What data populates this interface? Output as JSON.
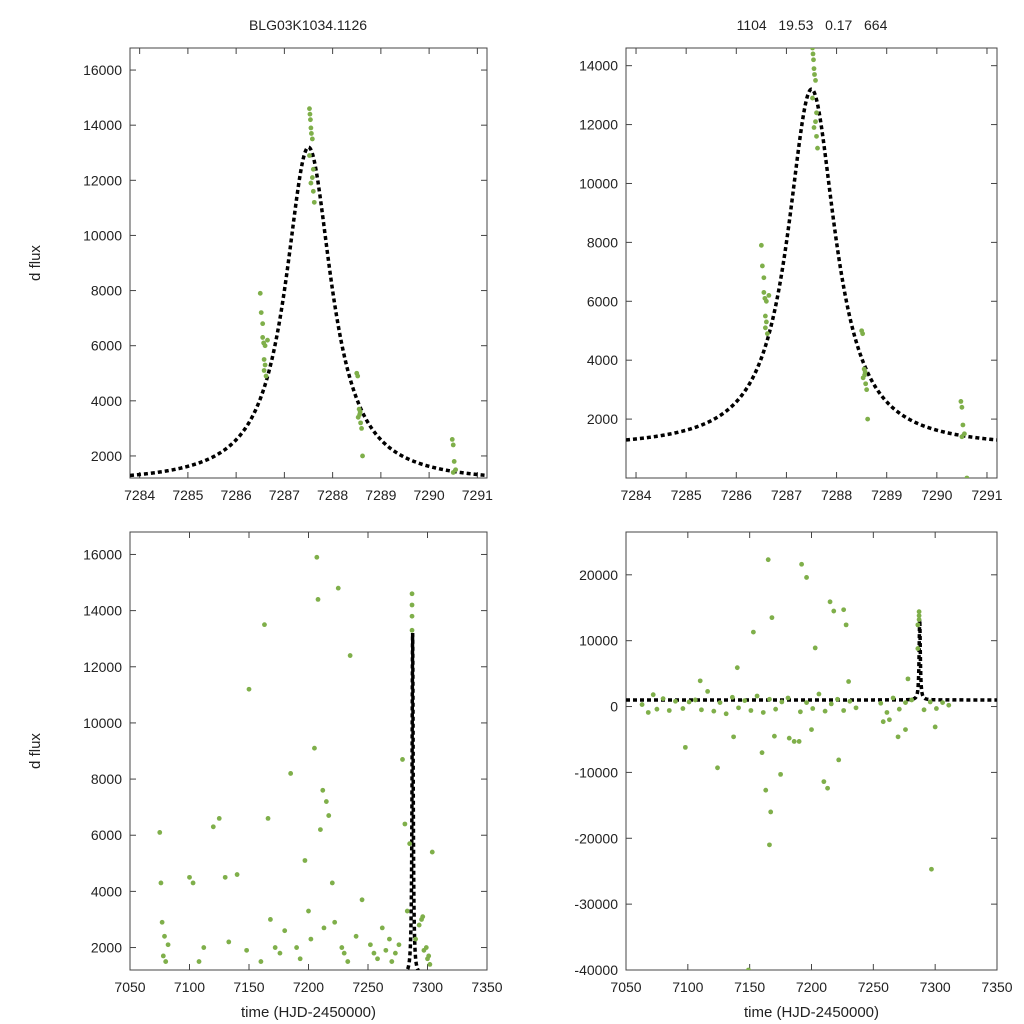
{
  "figure": {
    "title_left": "BLG03K1034.1126",
    "title_right": "1104   19.53   0.17   664",
    "point_color": "#7faf4a",
    "model_color": "#000000"
  },
  "chart_data": [
    {
      "type": "scatter",
      "title": "BLG03K1034.1126",
      "xlabel": "",
      "ylabel": "d flux",
      "xlim": [
        7283.8,
        7291.2
      ],
      "ylim": [
        1200,
        16800
      ],
      "xticks": [
        7284,
        7285,
        7286,
        7287,
        7288,
        7289,
        7290,
        7291
      ],
      "yticks": [
        2000,
        4000,
        6000,
        8000,
        10000,
        12000,
        14000,
        16000
      ],
      "model": {
        "name": "microlensing fit",
        "t0": 7287.5,
        "peak": 13200,
        "baseline": 1000,
        "width": 0.58
      },
      "series": [
        {
          "name": "photometry",
          "x": [
            7286.5,
            7286.52,
            7286.55,
            7286.57,
            7286.58,
            7286.6,
            7286.62,
            7286.55,
            7286.6,
            7286.65,
            7286.58,
            7287.52,
            7287.53,
            7287.54,
            7287.55,
            7287.56,
            7287.58,
            7287.6,
            7287.52,
            7287.55,
            7287.62,
            7287.58,
            7287.6,
            7288.5,
            7288.52,
            7288.55,
            7288.56,
            7288.58,
            7288.6,
            7288.62,
            7288.53,
            7288.57,
            7290.48,
            7290.5,
            7290.52,
            7290.55,
            7290.5
          ],
          "y": [
            7900,
            7200,
            6300,
            6100,
            5500,
            5300,
            4900,
            6800,
            6000,
            6200,
            5100,
            14600,
            14400,
            14200,
            13900,
            13700,
            13500,
            12400,
            12900,
            11900,
            11200,
            12100,
            11600,
            5000,
            4900,
            3700,
            3500,
            3200,
            3000,
            2000,
            3400,
            3600,
            2600,
            2400,
            1800,
            1500,
            1400
          ]
        }
      ]
    },
    {
      "type": "scatter",
      "title": "1104   19.53   0.17   664",
      "xlabel": "",
      "ylabel": "",
      "xlim": [
        7283.8,
        7291.2
      ],
      "ylim": [
        0,
        14600
      ],
      "xticks": [
        7284,
        7285,
        7286,
        7287,
        7288,
        7289,
        7290,
        7291
      ],
      "yticks": [
        2000,
        4000,
        6000,
        8000,
        10000,
        12000,
        14000
      ],
      "model": {
        "name": "microlensing fit",
        "t0": 7287.5,
        "peak": 13200,
        "baseline": 1000,
        "width": 0.58
      },
      "series": [
        {
          "name": "photometry",
          "x": [
            7286.5,
            7286.52,
            7286.55,
            7286.57,
            7286.58,
            7286.6,
            7286.62,
            7286.55,
            7286.6,
            7286.65,
            7286.58,
            7287.52,
            7287.53,
            7287.54,
            7287.55,
            7287.56,
            7287.58,
            7287.6,
            7287.52,
            7287.55,
            7287.62,
            7287.58,
            7287.6,
            7288.5,
            7288.52,
            7288.55,
            7288.56,
            7288.58,
            7288.6,
            7288.62,
            7288.53,
            7288.57,
            7290.48,
            7290.5,
            7290.52,
            7290.55,
            7290.5,
            7290.6
          ],
          "y": [
            7900,
            7200,
            6300,
            6100,
            5500,
            5300,
            4900,
            6800,
            6000,
            6200,
            5100,
            14600,
            14400,
            14200,
            13900,
            13700,
            13500,
            12400,
            12900,
            11900,
            11200,
            12100,
            11600,
            5000,
            4900,
            3700,
            3500,
            3200,
            3000,
            2000,
            3400,
            3600,
            2600,
            2400,
            1800,
            1500,
            1400,
            0
          ]
        }
      ]
    },
    {
      "type": "scatter",
      "title": "",
      "xlabel": "time (HJD-2450000)",
      "ylabel": "d flux",
      "xlim": [
        7050,
        7350
      ],
      "ylim": [
        1200,
        16800
      ],
      "xticks": [
        7050,
        7100,
        7150,
        7200,
        7250,
        7300,
        7350
      ],
      "yticks": [
        2000,
        4000,
        6000,
        8000,
        10000,
        12000,
        14000,
        16000
      ],
      "model": {
        "name": "microlensing fit",
        "t0": 7287.5,
        "peak": 13200,
        "baseline": 1000,
        "width": 0.58
      },
      "series": [
        {
          "name": "photometry",
          "x": [
            7075,
            7077,
            7079,
            7078,
            7080,
            7076,
            7082,
            7100,
            7103,
            7108,
            7112,
            7120,
            7125,
            7130,
            7133,
            7140,
            7148,
            7150,
            7160,
            7163,
            7166,
            7168,
            7172,
            7176,
            7180,
            7185,
            7190,
            7193,
            7197,
            7200,
            7202,
            7205,
            7207,
            7208,
            7210,
            7212,
            7213,
            7215,
            7217,
            7220,
            7222,
            7225,
            7228,
            7230,
            7233,
            7235,
            7240,
            7245,
            7252,
            7255,
            7258,
            7262,
            7265,
            7268,
            7270,
            7273,
            7276,
            7279,
            7281,
            7283,
            7285,
            7287,
            7287,
            7287,
            7287,
            7295,
            7297,
            7300,
            7302,
            7304,
            7290,
            7293,
            7296,
            7299,
            7301
          ],
          "y": [
            6100,
            2900,
            2400,
            1700,
            1500,
            4300,
            2100,
            4500,
            4300,
            1500,
            2000,
            6300,
            6600,
            4500,
            2200,
            4600,
            1900,
            11200,
            1500,
            13500,
            6600,
            3000,
            2000,
            1800,
            2600,
            8200,
            2000,
            1600,
            5100,
            3300,
            2300,
            9100,
            15900,
            14400,
            6200,
            7600,
            2700,
            7200,
            6700,
            4300,
            2900,
            14800,
            2000,
            1800,
            1500,
            12400,
            2400,
            3700,
            2100,
            1800,
            1600,
            2700,
            1900,
            2300,
            1500,
            1800,
            2100,
            8700,
            6400,
            3300,
            5700,
            14600,
            14200,
            13800,
            13300,
            3000,
            1900,
            1600,
            1400,
            5400,
            2300,
            2800,
            3100,
            2000,
            1700
          ]
        }
      ]
    },
    {
      "type": "scatter",
      "title": "",
      "xlabel": "time (HJD-2450000)",
      "ylabel": "",
      "xlim": [
        7050,
        7350
      ],
      "ylim": [
        -40000,
        26500
      ],
      "xticks": [
        7050,
        7100,
        7150,
        7200,
        7250,
        7300,
        7350
      ],
      "yticks": [
        -40000,
        -30000,
        -20000,
        -10000,
        0,
        10000,
        20000
      ],
      "model": {
        "name": "microlensing fit",
        "t0": 7287.5,
        "peak": 13200,
        "baseline": 1000,
        "width": 0.58
      },
      "series": [
        {
          "name": "photometry",
          "x": [
            7063,
            7068,
            7072,
            7075,
            7080,
            7085,
            7090,
            7096,
            7101,
            7106,
            7111,
            7116,
            7121,
            7126,
            7131,
            7136,
            7141,
            7146,
            7151,
            7156,
            7161,
            7166,
            7171,
            7176,
            7181,
            7191,
            7196,
            7201,
            7206,
            7211,
            7216,
            7221,
            7226,
            7231,
            7236,
            7256,
            7261,
            7266,
            7271,
            7276,
            7281,
            7291,
            7296,
            7301,
            7306,
            7311,
            7098,
            7124,
            7137,
            7149,
            7153,
            7160,
            7163,
            7165,
            7166,
            7167,
            7168,
            7170,
            7175,
            7182,
            7186,
            7192,
            7196,
            7200,
            7203,
            7210,
            7213,
            7215,
            7218,
            7222,
            7226,
            7228,
            7258,
            7263,
            7270,
            7276,
            7287,
            7287,
            7287,
            7286,
            7286,
            7297,
            7300,
            7110,
            7140,
            7190,
            7230,
            7278
          ],
          "y": [
            300,
            -900,
            1800,
            -400,
            1200,
            -600,
            800,
            -300,
            700,
            1000,
            -500,
            2300,
            -700,
            600,
            -1100,
            1400,
            -200,
            900,
            -600,
            1600,
            -900,
            1100,
            -400,
            700,
            1300,
            -800,
            600,
            -300,
            1900,
            -700,
            400,
            1100,
            -600,
            800,
            -200,
            500,
            -900,
            1300,
            -400,
            600,
            1000,
            -500,
            700,
            -300,
            600,
            200,
            -6200,
            -9300,
            -4600,
            -40000,
            11300,
            -7000,
            -12700,
            22300,
            -21000,
            -16000,
            13500,
            -4500,
            -10300,
            -4800,
            -5300,
            21600,
            19600,
            -3500,
            8900,
            -11400,
            -12400,
            15900,
            14500,
            -8100,
            14700,
            12400,
            -2300,
            -2000,
            -4600,
            -3500,
            14400,
            13800,
            13200,
            12400,
            8800,
            -24700,
            -3100,
            3900,
            5900,
            -5300,
            3800,
            4200
          ]
        }
      ]
    }
  ]
}
